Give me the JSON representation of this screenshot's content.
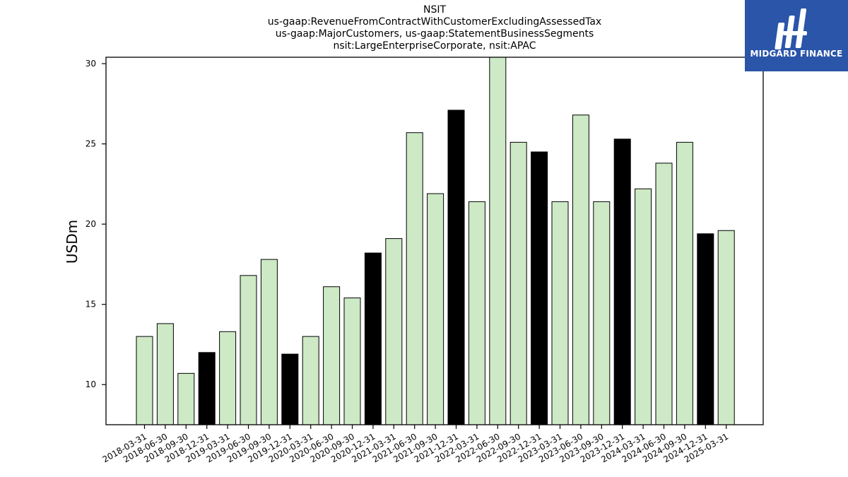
{
  "header": {
    "title_lines": [
      "NSIT",
      "us-gaap:RevenueFromContractWithCustomerExcludingAssessedTax",
      "us-gaap:MajorCustomers, us-gaap:StatementBusinessSegments",
      "nsit:LargeEnterpriseCorporate, nsit:APAC"
    ]
  },
  "logo": {
    "text": "MIDGARD FINANCE"
  },
  "colors": {
    "normal_bar": "#cde9c5",
    "highlight_bar": "#000000",
    "edge": "#000000",
    "logo_bg": "#2a55a9"
  },
  "chart_data": {
    "type": "bar",
    "title": "NSIT\nus-gaap:RevenueFromContractWithCustomerExcludingAssessedTax\nus-gaap:MajorCustomers, us-gaap:StatementBusinessSegments\nnsit:LargeEnterpriseCorporate, nsit:APAC",
    "xlabel": "",
    "ylabel": "USDm",
    "ylim": [
      7.5,
      30.4
    ],
    "yticks": [
      10,
      15,
      20,
      25,
      30
    ],
    "grid": false,
    "categories": [
      "2018-03-31",
      "2018-06-30",
      "2018-09-30",
      "2018-12-31",
      "2019-03-31",
      "2019-06-30",
      "2019-09-30",
      "2019-12-31",
      "2020-03-31",
      "2020-06-30",
      "2020-09-30",
      "2020-12-31",
      "2021-03-31",
      "2021-06-30",
      "2021-09-30",
      "2021-12-31",
      "2022-03-31",
      "2022-06-30",
      "2022-09-30",
      "2022-12-31",
      "2023-03-31",
      "2023-06-30",
      "2023-09-30",
      "2023-12-31",
      "2024-03-31",
      "2024-06-30",
      "2024-09-30",
      "2024-12-31",
      "2025-03-31"
    ],
    "values": [
      13.0,
      13.8,
      10.7,
      12.0,
      13.3,
      16.8,
      17.8,
      11.9,
      13.0,
      16.1,
      15.4,
      18.2,
      19.1,
      25.7,
      21.9,
      27.1,
      21.4,
      30.5,
      25.1,
      24.5,
      21.4,
      26.8,
      21.4,
      25.3,
      22.2,
      23.8,
      25.1,
      19.4,
      19.6
    ],
    "highlight": [
      false,
      false,
      false,
      true,
      false,
      false,
      false,
      true,
      false,
      false,
      false,
      true,
      false,
      false,
      false,
      true,
      false,
      false,
      false,
      true,
      false,
      false,
      false,
      true,
      false,
      false,
      false,
      true,
      false
    ]
  }
}
